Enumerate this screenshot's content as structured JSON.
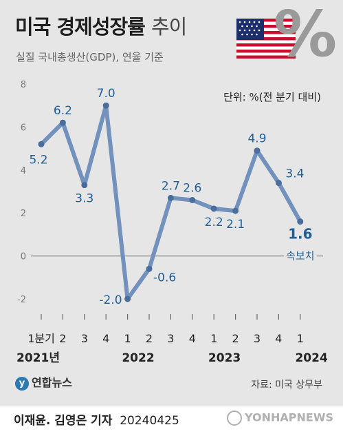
{
  "header": {
    "title_bold": "미국 경제성장률",
    "title_light": "추이",
    "subtitle": "실질 국내총생산(GDP), 연율 기준",
    "unit": "단위: %(전 분기 대비)"
  },
  "footer": {
    "logo": "연합뉴스",
    "source": "자료: 미국 상무부",
    "credit_name": "이재윤. 김영은 기자",
    "credit_date": "20240425",
    "watermark": "YONHAPNEWS"
  },
  "colors": {
    "line": "#7291bd",
    "label": "#1f5e97",
    "axis": "#888888"
  },
  "chart_data": {
    "type": "line",
    "title": "미국 경제성장률 추이",
    "ylim": [
      -2,
      8
    ],
    "yticks": [
      "8",
      "6",
      "4",
      "2",
      "0",
      "-2"
    ],
    "grid": false,
    "categories": [
      "1분기",
      "2",
      "3",
      "4",
      "1",
      "2",
      "3",
      "4",
      "1",
      "2",
      "3",
      "4",
      "1"
    ],
    "years": [
      "2021년",
      "2022",
      "2023",
      "2024"
    ],
    "series": [
      {
        "values": [
          5.2,
          6.2,
          3.3,
          7.0,
          -2.0,
          -0.6,
          2.7,
          2.6,
          2.2,
          2.1,
          4.9,
          3.4,
          1.6
        ],
        "data_labels": [
          "5.2",
          "6.2",
          "3.3",
          "7.0",
          "-2.0",
          "-0.6",
          "2.7",
          "2.6",
          "2.2",
          "2.1",
          "4.9",
          "3.4",
          "1.6"
        ]
      }
    ],
    "annotation": "속보치"
  }
}
